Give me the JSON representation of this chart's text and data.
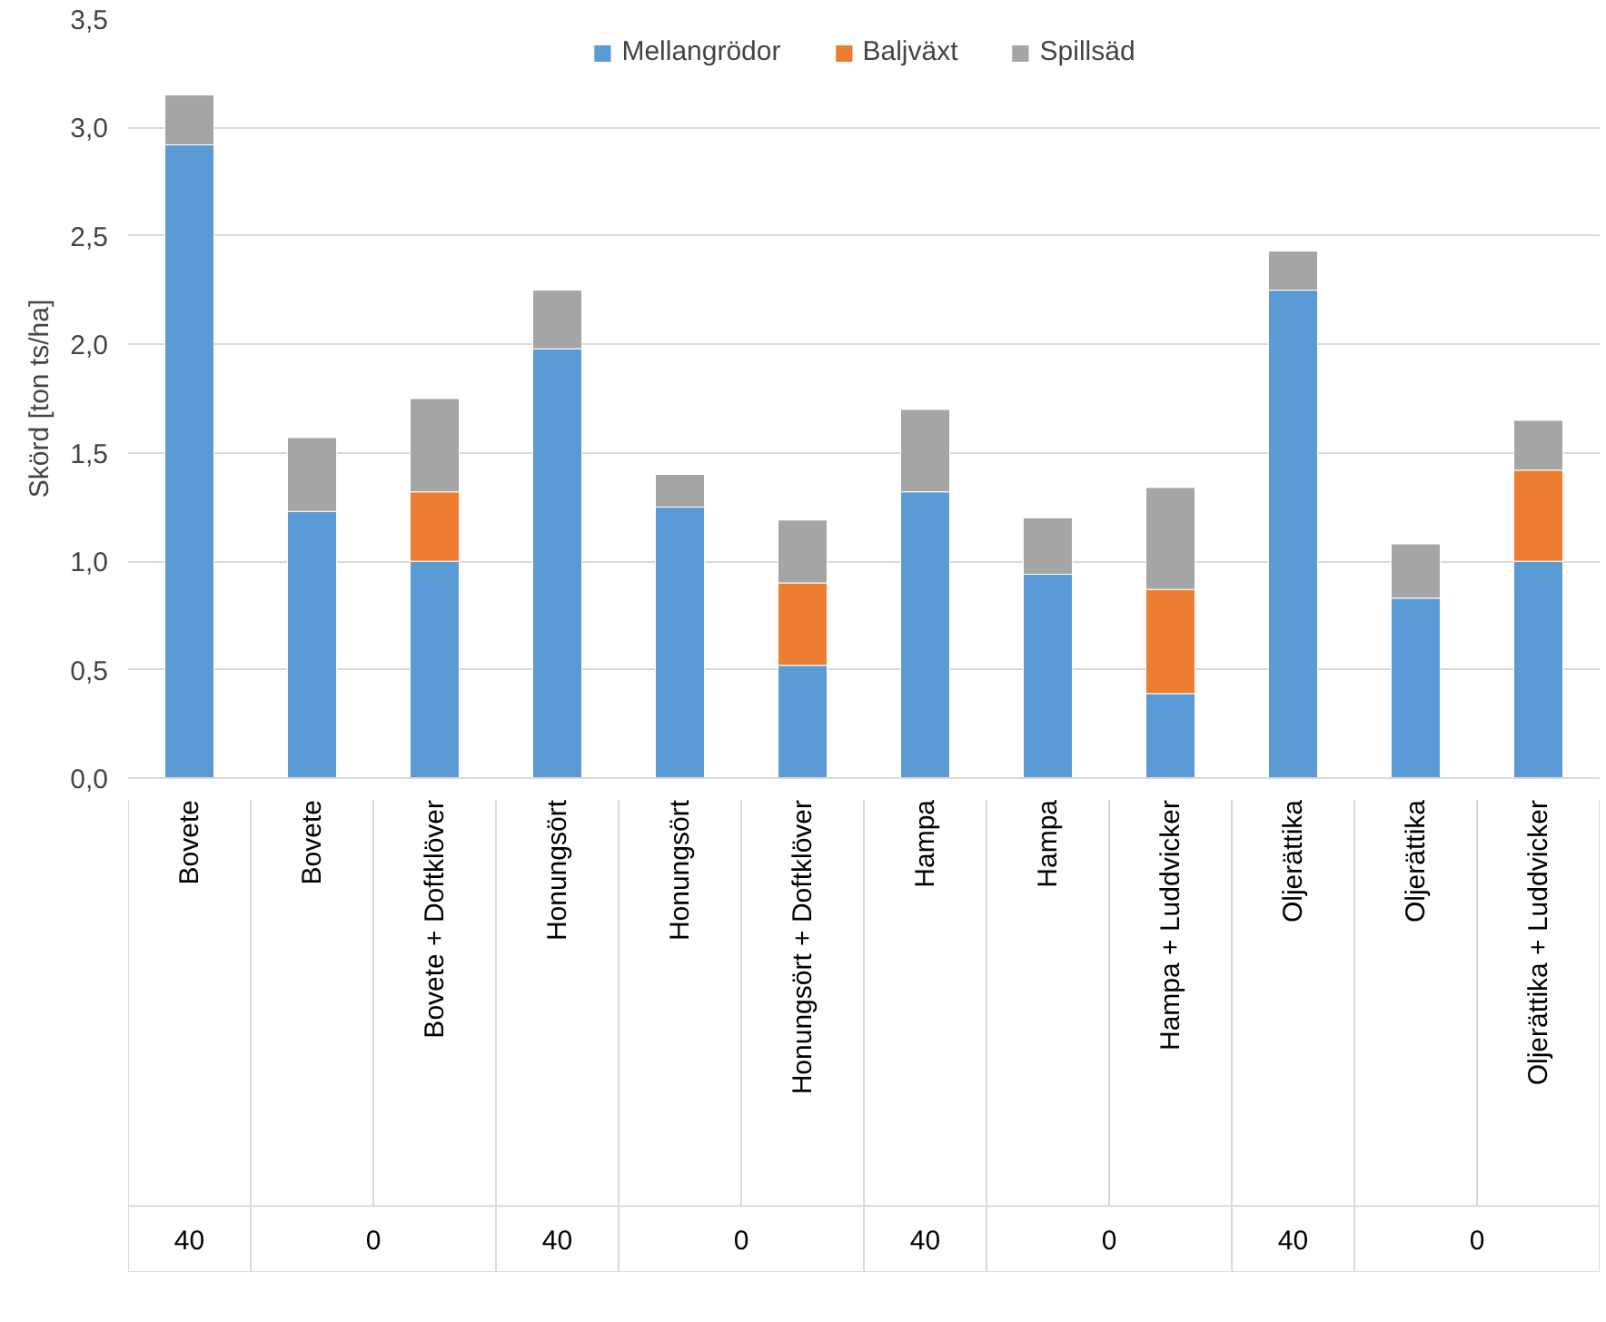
{
  "chart_data": {
    "type": "bar",
    "stacked": true,
    "ylabel": "Skörd [ton ts/ha]",
    "categories": [
      "Bovete",
      "Bovete",
      "Bovete + Doftklöver",
      "Honungsört",
      "Honungsört",
      "Honungsört + Doftklöver",
      "Hampa",
      "Hampa",
      "Hampa + Luddvicker",
      "Oljerättika",
      "Oljerättika",
      "Oljerättika + Luddvicker"
    ],
    "series": [
      {
        "name": "Mellangrödor",
        "color": "#5b9bd5",
        "values": [
          2.92,
          1.23,
          1.0,
          1.98,
          1.25,
          0.52,
          1.32,
          0.94,
          0.39,
          2.25,
          0.83,
          1.0
        ]
      },
      {
        "name": "Baljväxt",
        "color": "#ed7d31",
        "values": [
          0,
          0,
          0.32,
          0,
          0,
          0.38,
          0,
          0,
          0.48,
          0,
          0,
          0.42
        ]
      },
      {
        "name": "Spillsäd",
        "color": "#a5a5a5",
        "values": [
          0.23,
          0.34,
          0.43,
          0.27,
          0.15,
          0.29,
          0.38,
          0.26,
          0.47,
          0.18,
          0.25,
          0.23
        ]
      }
    ],
    "ylim": [
      0,
      3.5
    ],
    "yticks": [
      {
        "value": 0,
        "label": "0,0"
      },
      {
        "value": 0.5,
        "label": "0,5"
      },
      {
        "value": 1,
        "label": "1,0"
      },
      {
        "value": 1.5,
        "label": "1,5"
      },
      {
        "value": 2,
        "label": "2,0"
      },
      {
        "value": 2.5,
        "label": "2,5"
      },
      {
        "value": 3,
        "label": "3,0"
      },
      {
        "value": 3.5,
        "label": "3,5"
      }
    ],
    "annotations": [
      "40",
      "0",
      "40",
      "0",
      "40",
      "0",
      "40",
      "0"
    ],
    "grid": "y",
    "legend": "top"
  }
}
